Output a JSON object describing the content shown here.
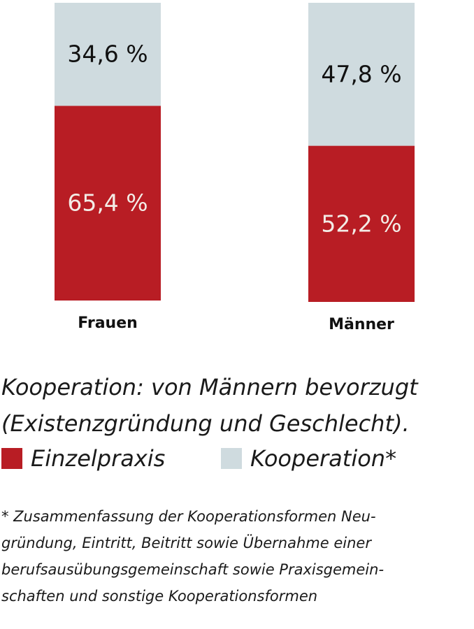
{
  "chart_data": {
    "type": "bar",
    "stacked": true,
    "categories": [
      "Frauen",
      "Männer"
    ],
    "series": [
      {
        "name": "Einzelpraxis",
        "values": [
          65.4,
          52.2
        ],
        "labels": [
          "65,4 %",
          "52,2 %"
        ],
        "color": "#b81d24",
        "label_color": "#f3ece6"
      },
      {
        "name": "Kooperation*",
        "values": [
          34.6,
          47.8
        ],
        "labels": [
          "34,6 %",
          "47,8 %"
        ],
        "color": "#cfdbdf",
        "label_color": "#111111"
      }
    ],
    "ylim": [
      0,
      100
    ],
    "title": "Kooperation: von Männern bevorzugt (Existenzgründung und Geschlecht).",
    "grid": false,
    "legend_placement": "bottom"
  },
  "caption": {
    "line1": "Kooperation: von Männern bevorzugt",
    "line2": "(Existenzgründung und Geschlecht)."
  },
  "legend": {
    "items": [
      {
        "label": "Einzelpraxis",
        "color": "#b81d24"
      },
      {
        "label": "Kooperation*",
        "color": "#cfdbdf"
      }
    ]
  },
  "footnote": "* Zusammenfassung der Kooperationsformen Neu-\ngründung, Eintritt, Beitritt sowie Übernahme einer\nberufsausübungsgemeinschaft sowie Praxisgemein-\nschaften und sonstige Kooperationsformen"
}
